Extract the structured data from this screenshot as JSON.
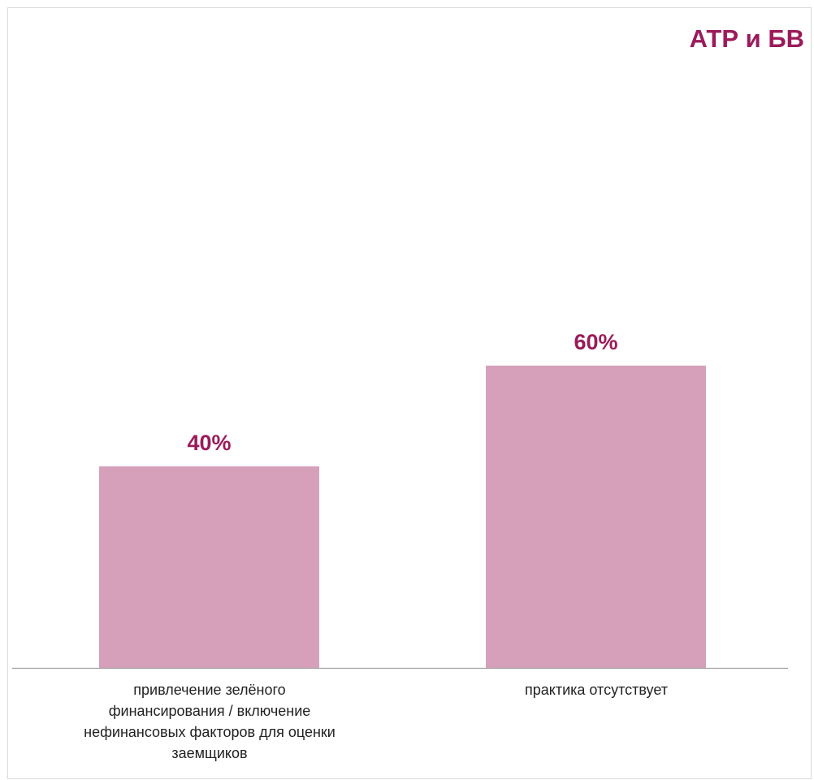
{
  "chart_data": {
    "type": "bar",
    "title": "АТР и БВ",
    "categories": [
      "привлечение зелёного финансирования / включение нефинансовых факторов для оценки заемщиков",
      "практика отсутствует"
    ],
    "values": [
      40,
      60
    ],
    "value_labels": [
      "40%",
      "60%"
    ],
    "unit": "%",
    "ylim": [
      0,
      100
    ],
    "grid": false,
    "legend": "none",
    "colors": {
      "bar": "#d6a0bb",
      "value_label": "#9b1b5a",
      "title": "#9b1b5a",
      "axis": "#9e9e9e"
    }
  }
}
